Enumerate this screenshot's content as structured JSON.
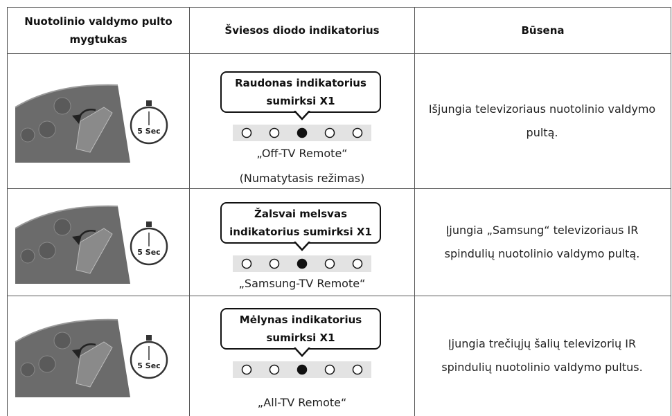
{
  "table": {
    "header": [
      "Nuotolinio valdymo pulto mygtukas",
      "Šviesos diodo indikatorius",
      "Būsena"
    ],
    "rows": [
      {
        "timer": "5 Sec",
        "bubble": "Raudonas indikatorius sumirksi X1",
        "mode": "„Off-TV Remote“",
        "mode_note": "(Numatytasis režimas)",
        "status": "Išjungia televizoriaus nuotolinio valdymo pultą."
      },
      {
        "timer": "5 Sec",
        "bubble": "Žalsvai melsvas indikatorius sumirksi X1",
        "mode": "„Samsung-TV Remote“",
        "status": "Įjungia „Samsung“ televizoriaus IR spindulių nuotolinio valdymo pultą."
      },
      {
        "timer": "5 Sec",
        "bubble": "Mėlynas indikatorius sumirksi X1",
        "mode": "„All-TV Remote“",
        "status": "Įjungia trečiųjų šalių televizorių IR spindulių nuotolinio valdymo pultus."
      }
    ]
  }
}
